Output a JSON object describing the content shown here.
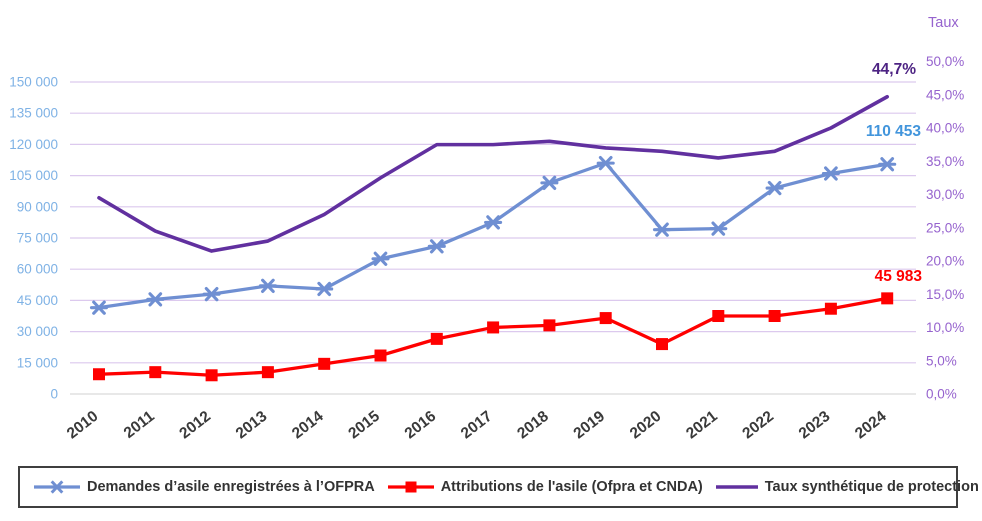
{
  "chart": {
    "right_axis_title": "Taux",
    "legend": [
      {
        "label": "Demandes d’asile enregistrées à l’OFPRA"
      },
      {
        "label": "Attributions de l'asile (Ofpra et CNDA)"
      },
      {
        "label": "Taux synthétique de protection"
      }
    ]
  },
  "chart_data": {
    "type": "line",
    "title": "",
    "x": [
      2010,
      2011,
      2012,
      2013,
      2014,
      2015,
      2016,
      2017,
      2018,
      2019,
      2020,
      2021,
      2022,
      2023,
      2024
    ],
    "series": [
      {
        "name": "Demandes d'asile enregistrées à l'OFPRA",
        "axis": "left",
        "color": "#6F8FD2",
        "marker": "asterisk",
        "values": [
          41500,
          45500,
          48000,
          52000,
          50500,
          65000,
          71000,
          82500,
          101500,
          111000,
          79000,
          79500,
          99000,
          106000,
          110453
        ]
      },
      {
        "name": "Attributions de l'asile (Ofpra et CNDA)",
        "axis": "left",
        "color": "#FF0000",
        "marker": "square",
        "values": [
          9500,
          10500,
          9000,
          10500,
          14500,
          18500,
          26500,
          32000,
          33000,
          36500,
          24000,
          37500,
          37500,
          41000,
          45983
        ]
      },
      {
        "name": "Taux synthétique de protection",
        "axis": "right",
        "color": "#61309F",
        "marker": "none",
        "values": [
          29.5,
          24.5,
          21.5,
          23,
          27,
          32.5,
          37.5,
          37.5,
          38,
          37,
          36.5,
          35.5,
          36.5,
          40,
          44.7
        ]
      }
    ],
    "left_axis": {
      "range": [
        0,
        150000
      ],
      "tick_interval": 15000,
      "tick_labels": [
        "0",
        "15 000",
        "30 000",
        "45 000",
        "60 000",
        "75 000",
        "90 000",
        "105 000",
        "120 000",
        "135 000",
        "150 000"
      ],
      "label_color": "#7FB2E5"
    },
    "right_axis": {
      "title": "Taux",
      "range": [
        0,
        50
      ],
      "tick_interval": 5,
      "tick_labels": [
        "0,0%",
        "5,0%",
        "10,0%",
        "15,0%",
        "20,0%",
        "25,0%",
        "30,0%",
        "35,0%",
        "40,0%",
        "45,0%",
        "50,0%"
      ],
      "label_color": "#9663CE"
    },
    "annotations": [
      {
        "text": "44,7%",
        "series": "Taux synthétique de protection",
        "x": 2024,
        "color": "#4D2383"
      },
      {
        "text": "110 453",
        "series": "Demandes d'asile enregistrées à l'OFPRA",
        "x": 2024,
        "color": "#4295DC"
      },
      {
        "text": "45 983",
        "series": "Attributions de l'asile (Ofpra et CNDA)",
        "x": 2024,
        "color": "#FF0000"
      }
    ],
    "grid": true,
    "gridline_color": "#DCC9EE",
    "zero_gridline_color": "#D9D9D9",
    "x_label_color": "#3A3A3A",
    "legend_position": "bottom"
  }
}
